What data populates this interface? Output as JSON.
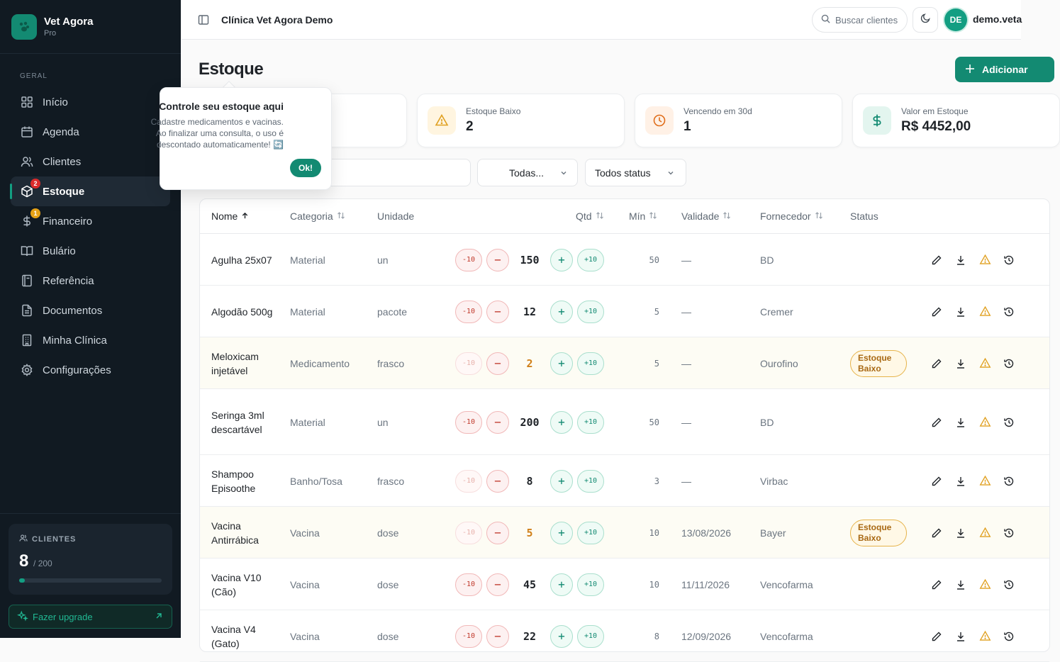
{
  "app": {
    "name": "Vet Agora",
    "plan": "Pro",
    "clinic": "Clínica Vet Agora Demo"
  },
  "sidebar": {
    "section": "GERAL",
    "items": [
      {
        "label": "Início",
        "icon": "grid-icon"
      },
      {
        "label": "Agenda",
        "icon": "calendar-icon"
      },
      {
        "label": "Clientes",
        "icon": "users-icon"
      },
      {
        "label": "Estoque",
        "icon": "package-icon",
        "badge": "2",
        "active": true
      },
      {
        "label": "Financeiro",
        "icon": "dollar-icon",
        "badge": "1"
      },
      {
        "label": "Bulário",
        "icon": "book-icon"
      },
      {
        "label": "Referência",
        "icon": "notebook-icon"
      },
      {
        "label": "Documentos",
        "icon": "file-icon"
      },
      {
        "label": "Minha Clínica",
        "icon": "building-icon"
      },
      {
        "label": "Configurações",
        "icon": "gear-icon"
      }
    ],
    "clients_label": "CLIENTES",
    "clients_count": "8",
    "clients_max": "/ 200",
    "clients_progress": 0.04,
    "upgrade_label": "Fazer upgrade"
  },
  "topbar": {
    "search_placeholder": "Buscar clientes",
    "avatar_initials": "DE",
    "user": "demo.veta"
  },
  "page": {
    "title": "Estoque",
    "add_label": "Adicionar"
  },
  "stats": [
    {
      "label": "Estoque Baixo",
      "value": "2"
    },
    {
      "label": "Vencendo em 30d",
      "value": "1"
    },
    {
      "label": "Valor em Estoque",
      "value": "R$ 4452,00"
    }
  ],
  "filters": {
    "category": "Todas...",
    "status": "Todos status"
  },
  "tour": {
    "title": "Controle seu estoque aqui",
    "line1": "Cadastre medicamentos e vacinas.",
    "line2": "Ao finalizar uma consulta, o uso é",
    "line3": "descontado automaticamente! 🔄",
    "ok": "Ok!"
  },
  "table": {
    "headers": {
      "name": "Nome",
      "category": "Categoria",
      "unit": "Unidade",
      "qty": "Qtd",
      "min": "Mín",
      "validity": "Validade",
      "supplier": "Fornecedor",
      "status": "Status"
    },
    "qty_buttons": {
      "minus10": "-10",
      "minus1": "−",
      "plus1": "+",
      "plus10": "+10"
    },
    "rows": [
      {
        "name": "Agulha 25x07",
        "category": "Material",
        "unit": "un",
        "qty": "150",
        "min": "50",
        "validity": "—",
        "supplier": "BD",
        "status": ""
      },
      {
        "name": "Algodão 500g",
        "category": "Material",
        "unit": "pacote",
        "qty": "12",
        "min": "5",
        "validity": "—",
        "supplier": "Cremer",
        "status": ""
      },
      {
        "name": "Meloxicam injetável",
        "category": "Medicamento",
        "unit": "frasco",
        "qty": "2",
        "min": "5",
        "validity": "—",
        "supplier": "Ourofino",
        "status": "Estoque Baixo"
      },
      {
        "name": "Seringa 3ml descartável",
        "category": "Material",
        "unit": "un",
        "qty": "200",
        "min": "50",
        "validity": "—",
        "supplier": "BD",
        "status": ""
      },
      {
        "name": "Shampoo Episoothe",
        "category": "Banho/Tosa",
        "unit": "frasco",
        "qty": "8",
        "min": "3",
        "validity": "—",
        "supplier": "Virbac",
        "status": ""
      },
      {
        "name": "Vacina Antirrábica",
        "category": "Vacina",
        "unit": "dose",
        "qty": "5",
        "min": "10",
        "validity": "13/08/2026",
        "supplier": "Bayer",
        "status": "Estoque Baixo"
      },
      {
        "name": "Vacina V10 (Cão)",
        "category": "Vacina",
        "unit": "dose",
        "qty": "45",
        "min": "10",
        "validity": "11/11/2026",
        "supplier": "Vencofarma",
        "status": ""
      },
      {
        "name": "Vacina V4 (Gato)",
        "category": "Vacina",
        "unit": "dose",
        "qty": "22",
        "min": "8",
        "validity": "12/09/2026",
        "supplier": "Vencofarma",
        "status": ""
      }
    ]
  },
  "colors": {
    "accent": "#138a72",
    "sidebar_bg": "#111a22",
    "warning": "#d0801a",
    "danger": "#c0392b"
  }
}
